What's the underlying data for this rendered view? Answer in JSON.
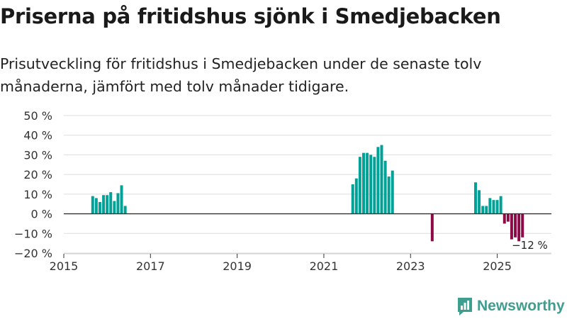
{
  "title": "Priserna på fritidshus sjönk i Smedjebacken",
  "subtitle": "Prisutveckling för fritidshus i Smedjebacken under de senaste tolv månaderna, jämfört med tolv månader tidigare.",
  "brand": "Newsworthy",
  "colors": {
    "positive": "#00a196",
    "negative": "#8c0a46",
    "grid": "#dddddd",
    "axis": "#333333",
    "brand": "#3f9e8f"
  },
  "chart_data": {
    "type": "bar",
    "ylim": [
      -20,
      50
    ],
    "xlim": [
      2015.0,
      2026.25
    ],
    "yticks": [
      -20,
      -10,
      0,
      10,
      20,
      30,
      40,
      50
    ],
    "ytick_labels": [
      "−20 %",
      "−10 %",
      "0 %",
      "10 %",
      "20 %",
      "30 %",
      "40 %",
      "50 %"
    ],
    "xticks": [
      2015,
      2017,
      2019,
      2021,
      2023,
      2025
    ],
    "xtick_labels": [
      "2015",
      "2017",
      "2019",
      "2021",
      "2023",
      "2025"
    ],
    "annotation": {
      "label": "−12 %",
      "x": 2025.75,
      "y": -12
    },
    "series": [
      {
        "name": "Prisutveckling",
        "points": [
          {
            "x": 2015.667,
            "y": 9
          },
          {
            "x": 2015.75,
            "y": 8
          },
          {
            "x": 2015.833,
            "y": 6
          },
          {
            "x": 2015.917,
            "y": 9.5
          },
          {
            "x": 2016.0,
            "y": 9.5
          },
          {
            "x": 2016.083,
            "y": 11
          },
          {
            "x": 2016.167,
            "y": 6.5
          },
          {
            "x": 2016.25,
            "y": 10.5
          },
          {
            "x": 2016.333,
            "y": 14.5
          },
          {
            "x": 2016.417,
            "y": 4
          },
          {
            "x": 2021.667,
            "y": 15
          },
          {
            "x": 2021.75,
            "y": 18
          },
          {
            "x": 2021.833,
            "y": 29
          },
          {
            "x": 2021.917,
            "y": 31
          },
          {
            "x": 2022.0,
            "y": 31
          },
          {
            "x": 2022.083,
            "y": 30
          },
          {
            "x": 2022.167,
            "y": 29
          },
          {
            "x": 2022.25,
            "y": 34
          },
          {
            "x": 2022.333,
            "y": 35
          },
          {
            "x": 2022.417,
            "y": 27
          },
          {
            "x": 2022.5,
            "y": 19
          },
          {
            "x": 2022.583,
            "y": 22
          },
          {
            "x": 2023.5,
            "y": -14
          },
          {
            "x": 2024.5,
            "y": 16
          },
          {
            "x": 2024.583,
            "y": 12
          },
          {
            "x": 2024.667,
            "y": 4
          },
          {
            "x": 2024.75,
            "y": 4
          },
          {
            "x": 2024.833,
            "y": 8
          },
          {
            "x": 2024.917,
            "y": 7
          },
          {
            "x": 2025.0,
            "y": 7
          },
          {
            "x": 2025.083,
            "y": 9
          },
          {
            "x": 2025.167,
            "y": -5
          },
          {
            "x": 2025.25,
            "y": -4
          },
          {
            "x": 2025.333,
            "y": -13
          },
          {
            "x": 2025.417,
            "y": -12
          },
          {
            "x": 2025.5,
            "y": -14
          },
          {
            "x": 2025.583,
            "y": -12
          }
        ]
      }
    ]
  }
}
